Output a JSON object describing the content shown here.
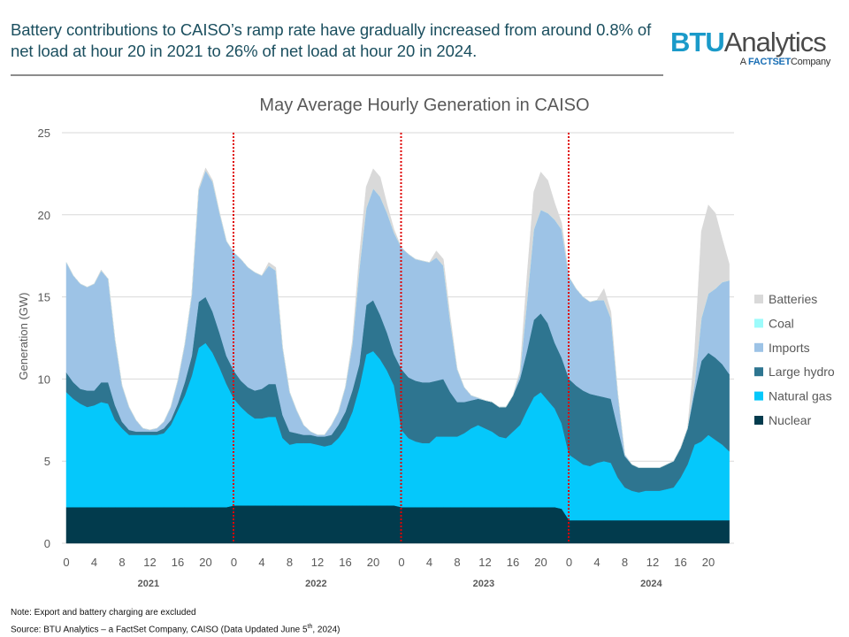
{
  "header": {
    "headline": "Battery contributions to CAISO’s ramp rate have gradually increased from around 0.8% of net load at hour 20 in 2021 to 26% of net load at hour 20 in 2024.",
    "logo": {
      "brand": "BTU",
      "name": "Analytics",
      "sub_prefix": "A",
      "sub_brand": "FACTSET",
      "sub_suffix": "Company"
    }
  },
  "footer": {
    "note": "Note: Export and battery charging are excluded",
    "source_prefix": "Source: BTU Analytics – a FactSet Company, CAISO (Data Updated June 5",
    "source_sup": "th",
    "source_suffix": ", 2024)"
  },
  "chart_data": {
    "type": "area",
    "stacked": true,
    "title": "May Average Hourly Generation in CAISO",
    "ylabel": "Generation (GW)",
    "xlabel": "",
    "ylim": [
      0,
      25
    ],
    "yticks": [
      0,
      5,
      10,
      15,
      20,
      25
    ],
    "grid": true,
    "legend_position": "right",
    "years": [
      "2021",
      "2022",
      "2023",
      "2024"
    ],
    "hours": [
      0,
      1,
      2,
      3,
      4,
      5,
      6,
      7,
      8,
      9,
      10,
      11,
      12,
      13,
      14,
      15,
      16,
      17,
      18,
      19,
      20,
      21,
      22,
      23
    ],
    "xtick_labels": [
      "0",
      "4",
      "8",
      "12",
      "16",
      "20"
    ],
    "year_separator_color": "#e00000",
    "series": [
      {
        "name": "Nuclear",
        "color": "#023b4d",
        "values": {
          "2021": [
            2.2,
            2.2,
            2.2,
            2.2,
            2.2,
            2.2,
            2.2,
            2.2,
            2.2,
            2.2,
            2.2,
            2.2,
            2.2,
            2.2,
            2.2,
            2.2,
            2.2,
            2.2,
            2.2,
            2.2,
            2.2,
            2.2,
            2.2,
            2.2
          ],
          "2022": [
            2.3,
            2.3,
            2.3,
            2.3,
            2.3,
            2.3,
            2.3,
            2.3,
            2.3,
            2.3,
            2.3,
            2.3,
            2.3,
            2.3,
            2.3,
            2.3,
            2.3,
            2.3,
            2.3,
            2.3,
            2.3,
            2.3,
            2.3,
            2.3
          ],
          "2023": [
            2.2,
            2.2,
            2.2,
            2.2,
            2.2,
            2.2,
            2.2,
            2.2,
            2.2,
            2.2,
            2.2,
            2.2,
            2.2,
            2.2,
            2.2,
            2.2,
            2.2,
            2.2,
            2.2,
            2.2,
            2.2,
            2.2,
            2.2,
            2.1
          ],
          "2024": [
            1.4,
            1.4,
            1.4,
            1.4,
            1.4,
            1.4,
            1.4,
            1.4,
            1.4,
            1.4,
            1.4,
            1.4,
            1.4,
            1.4,
            1.4,
            1.4,
            1.4,
            1.4,
            1.4,
            1.4,
            1.4,
            1.4,
            1.4,
            1.4
          ]
        }
      },
      {
        "name": "Natural gas",
        "color": "#05c8fb",
        "values": {
          "2021": [
            7.0,
            6.6,
            6.3,
            6.1,
            6.2,
            6.4,
            6.3,
            5.3,
            4.8,
            4.4,
            4.4,
            4.4,
            4.4,
            4.4,
            4.5,
            5.0,
            5.9,
            6.8,
            8.0,
            9.7,
            10.0,
            9.4,
            8.5,
            7.5
          ],
          "2022": [
            6.5,
            6.0,
            5.6,
            5.3,
            5.3,
            5.4,
            5.4,
            4.1,
            3.7,
            3.8,
            3.8,
            3.8,
            3.7,
            3.6,
            3.7,
            4.1,
            4.7,
            5.7,
            7.2,
            9.2,
            9.4,
            8.9,
            8.2,
            7.3
          ],
          "2023": [
            4.7,
            4.2,
            4.0,
            3.9,
            3.9,
            4.3,
            4.3,
            4.3,
            4.3,
            4.5,
            4.8,
            5.0,
            4.8,
            4.6,
            4.3,
            4.2,
            4.6,
            5.0,
            5.9,
            6.7,
            7.0,
            6.5,
            6.0,
            5.2
          ],
          "2024": [
            4.0,
            3.7,
            3.4,
            3.3,
            3.5,
            3.6,
            3.5,
            2.6,
            2.0,
            1.8,
            1.7,
            1.8,
            1.8,
            1.8,
            1.9,
            2.0,
            2.6,
            3.4,
            4.6,
            4.8,
            5.2,
            4.9,
            4.6,
            4.2
          ]
        }
      },
      {
        "name": "Large hydro",
        "color": "#2e7590",
        "values": {
          "2021": [
            1.2,
            1.0,
            0.9,
            1.0,
            0.9,
            1.2,
            1.3,
            0.9,
            0.4,
            0.3,
            0.2,
            0.2,
            0.2,
            0.2,
            0.3,
            0.3,
            0.4,
            0.8,
            1.2,
            2.8,
            2.8,
            2.5,
            2.1,
            1.7
          ],
          "2022": [
            1.7,
            1.6,
            1.6,
            1.7,
            1.8,
            2.0,
            2.0,
            1.4,
            0.8,
            0.6,
            0.5,
            0.5,
            0.5,
            0.6,
            0.6,
            0.8,
            1.0,
            1.3,
            1.4,
            3.0,
            3.1,
            2.7,
            2.3,
            1.9
          ],
          "2023": [
            3.7,
            3.7,
            3.7,
            3.7,
            3.7,
            3.4,
            3.5,
            2.7,
            2.1,
            1.9,
            1.7,
            1.6,
            1.7,
            1.8,
            1.8,
            1.9,
            2.2,
            2.8,
            3.6,
            4.7,
            4.8,
            4.7,
            4.0,
            4.0
          ],
          "2024": [
            4.6,
            4.5,
            4.5,
            4.4,
            4.1,
            3.9,
            3.9,
            3.0,
            1.9,
            1.6,
            1.5,
            1.4,
            1.4,
            1.4,
            1.5,
            1.6,
            1.8,
            2.2,
            3.2,
            4.9,
            5.0,
            5.0,
            4.9,
            4.7
          ]
        }
      },
      {
        "name": "Imports",
        "color": "#9dc3e6",
        "values": {
          "2021": [
            6.7,
            6.5,
            6.4,
            6.3,
            6.5,
            6.8,
            6.3,
            4.0,
            2.2,
            1.4,
            0.7,
            0.2,
            0.1,
            0.2,
            0.4,
            0.8,
            1.4,
            2.3,
            3.7,
            6.8,
            7.7,
            7.9,
            7.3,
            7.0
          ],
          "2022": [
            7.2,
            7.4,
            7.3,
            7.2,
            6.9,
            7.2,
            6.9,
            4.1,
            2.4,
            1.4,
            0.6,
            0.2,
            0.1,
            0.1,
            0.6,
            0.8,
            1.5,
            2.8,
            5.8,
            5.9,
            6.8,
            7.2,
            7.3,
            7.4
          ],
          "2023": [
            7.4,
            7.5,
            7.4,
            7.4,
            7.3,
            7.5,
            6.9,
            4.3,
            2.0,
            0.9,
            0.3,
            0.05,
            0,
            0,
            0,
            0,
            0,
            0.3,
            3.0,
            5.5,
            6.3,
            6.7,
            7.5,
            7.8
          ],
          "2024": [
            6.2,
            5.9,
            5.7,
            5.6,
            5.8,
            5.9,
            4.9,
            2.1,
            0.1,
            0,
            0,
            0,
            0,
            0,
            0,
            0,
            0,
            0,
            0.5,
            2.6,
            3.6,
            4.2,
            5.0,
            5.7
          ]
        }
      },
      {
        "name": "Coal",
        "color": "#9cfbfb",
        "values": {
          "2021": [
            0,
            0,
            0,
            0,
            0,
            0,
            0,
            0,
            0,
            0,
            0,
            0,
            0,
            0,
            0,
            0,
            0,
            0,
            0,
            0,
            0,
            0,
            0,
            0
          ],
          "2022": [
            0,
            0,
            0,
            0,
            0,
            0,
            0,
            0,
            0,
            0,
            0,
            0,
            0,
            0,
            0,
            0,
            0,
            0,
            0,
            0,
            0,
            0,
            0,
            0
          ],
          "2023": [
            0,
            0,
            0,
            0,
            0,
            0,
            0,
            0,
            0,
            0,
            0,
            0,
            0,
            0,
            0,
            0,
            0,
            0,
            0,
            0,
            0,
            0,
            0,
            0
          ],
          "2024": [
            0,
            0,
            0,
            0,
            0,
            0,
            0,
            0,
            0,
            0,
            0,
            0,
            0,
            0,
            0,
            0,
            0,
            0,
            0,
            0,
            0,
            0,
            0,
            0
          ]
        }
      },
      {
        "name": "Batteries",
        "color": "#d9d9d9",
        "values": {
          "2021": [
            0,
            0,
            0,
            0,
            0,
            0.05,
            0,
            0,
            0,
            0,
            0,
            0,
            0,
            0,
            0,
            0,
            0,
            0,
            0.05,
            0.1,
            0.15,
            0.1,
            0.05,
            0
          ],
          "2022": [
            0,
            0,
            0,
            0,
            0,
            0.2,
            0.2,
            0,
            0,
            0,
            0,
            0,
            0,
            0,
            0,
            0,
            0,
            0.2,
            0.8,
            1.3,
            1.2,
            1.2,
            0.5,
            0.2
          ],
          "2023": [
            0,
            0,
            0,
            0,
            0,
            0.4,
            0.4,
            0.3,
            0,
            0,
            0,
            0,
            0,
            0,
            0,
            0,
            0,
            0.2,
            1.5,
            2.3,
            2.3,
            2.0,
            1.0,
            0.4
          ],
          "2024": [
            0,
            0,
            0,
            0,
            0,
            0.7,
            0.4,
            0,
            0,
            0,
            0,
            0,
            0,
            0,
            0,
            0,
            0,
            0,
            1.8,
            5.3,
            5.4,
            4.6,
            2.6,
            1.0
          ]
        }
      }
    ]
  }
}
